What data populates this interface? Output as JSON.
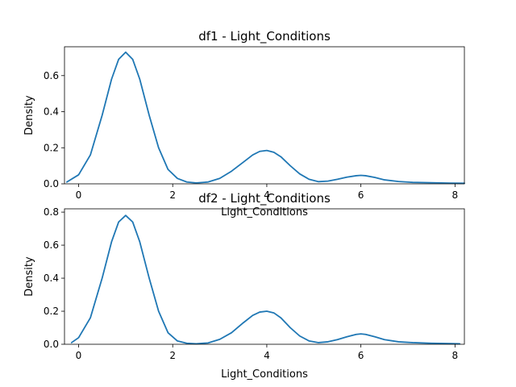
{
  "chart_data": [
    {
      "type": "line",
      "title": "df1 - Light_Conditions",
      "xlabel": "Light_Conditions",
      "ylabel": "Density",
      "xlim": [
        -0.3,
        8.2
      ],
      "ylim": [
        0,
        0.76
      ],
      "xticks": [
        0,
        2,
        4,
        6,
        8
      ],
      "yticks": [
        0.0,
        0.2,
        0.4,
        0.6
      ],
      "ytick_labels": [
        "0.0",
        "0.2",
        "0.4",
        "0.6"
      ],
      "grid": false,
      "series": [
        {
          "color": "#1f77b4",
          "x": [
            -0.25,
            0.0,
            0.25,
            0.5,
            0.7,
            0.85,
            1.0,
            1.15,
            1.3,
            1.5,
            1.7,
            1.9,
            2.1,
            2.3,
            2.5,
            2.75,
            3.0,
            3.25,
            3.5,
            3.7,
            3.85,
            4.0,
            4.15,
            4.3,
            4.5,
            4.7,
            4.9,
            5.1,
            5.3,
            5.5,
            5.7,
            5.9,
            6.0,
            6.1,
            6.3,
            6.5,
            6.8,
            7.1,
            7.5,
            7.9,
            8.2
          ],
          "y": [
            0.01,
            0.05,
            0.16,
            0.38,
            0.58,
            0.69,
            0.73,
            0.69,
            0.58,
            0.38,
            0.2,
            0.08,
            0.03,
            0.01,
            0.005,
            0.01,
            0.03,
            0.07,
            0.12,
            0.16,
            0.18,
            0.185,
            0.175,
            0.15,
            0.1,
            0.055,
            0.025,
            0.012,
            0.015,
            0.025,
            0.037,
            0.045,
            0.047,
            0.045,
            0.035,
            0.022,
            0.013,
            0.008,
            0.006,
            0.004,
            0.003
          ]
        }
      ]
    },
    {
      "type": "line",
      "title": "df2 - Light_Conditions",
      "xlabel": "Light_Conditions",
      "ylabel": "Density",
      "xlim": [
        -0.3,
        8.2
      ],
      "ylim": [
        0,
        0.82
      ],
      "xticks": [
        0,
        2,
        4,
        6,
        8
      ],
      "yticks": [
        0.0,
        0.2,
        0.4,
        0.6,
        0.8
      ],
      "ytick_labels": [
        "0.0",
        "0.2",
        "0.4",
        "0.6",
        "0.8"
      ],
      "grid": false,
      "series": [
        {
          "color": "#1f77b4",
          "x": [
            -0.15,
            0.0,
            0.25,
            0.5,
            0.7,
            0.85,
            1.0,
            1.15,
            1.3,
            1.5,
            1.7,
            1.9,
            2.1,
            2.3,
            2.5,
            2.75,
            3.0,
            3.25,
            3.5,
            3.7,
            3.85,
            4.0,
            4.15,
            4.3,
            4.5,
            4.7,
            4.9,
            5.1,
            5.3,
            5.5,
            5.7,
            5.9,
            6.0,
            6.1,
            6.3,
            6.5,
            6.8,
            7.1,
            7.5,
            7.9,
            8.1
          ],
          "y": [
            0.01,
            0.04,
            0.16,
            0.4,
            0.62,
            0.74,
            0.78,
            0.74,
            0.62,
            0.4,
            0.2,
            0.07,
            0.02,
            0.006,
            0.003,
            0.008,
            0.03,
            0.07,
            0.13,
            0.175,
            0.195,
            0.2,
            0.19,
            0.16,
            0.1,
            0.05,
            0.02,
            0.01,
            0.015,
            0.028,
            0.045,
            0.06,
            0.063,
            0.06,
            0.045,
            0.028,
            0.015,
            0.01,
            0.006,
            0.004,
            0.003
          ]
        }
      ]
    }
  ]
}
